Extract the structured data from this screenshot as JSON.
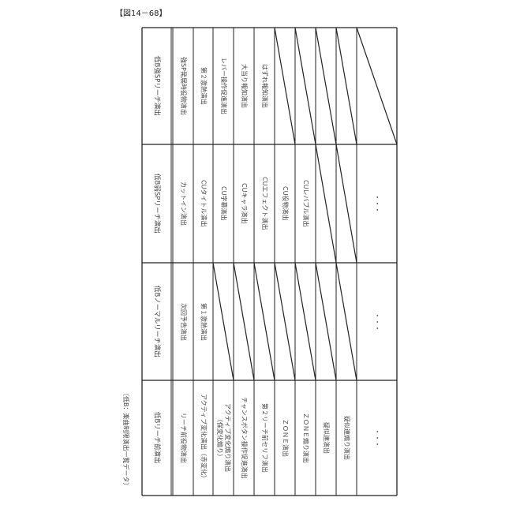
{
  "figure_label": "【図14－68】",
  "caption": "〔低B：楽曲制限演出一覧データ〕",
  "groups": [
    {
      "header": "低B強SPリーチ演出",
      "cells": [
        "強SP発展時役物演出",
        "第２激熱演出",
        "レバー操作促進演出",
        "大当り報知演出",
        "はずれ報知演出",
        null,
        null,
        null,
        null,
        null
      ]
    },
    {
      "header": "低B弱SPリーチ演出",
      "cells": [
        "カットイン演出",
        "CUタイトル演出",
        "CU字幕演出",
        "CUキャラ演出",
        "CUエフェクト演出",
        "CU役物演出",
        "CUレバブル演出",
        null,
        null,
        "・・・"
      ]
    },
    {
      "header": "低Bノーマルリーチ演出",
      "cells": [
        "次回予告演出",
        "第１激熱演出",
        null,
        null,
        null,
        null,
        null,
        null,
        null,
        "・・・"
      ]
    },
    {
      "header": "低Bリーチ前演出",
      "cells": [
        "リーチ前役物演出",
        "アクティブ変化演出（赤変化）",
        "アクティブ変化煽り演出\n（保変化煽り）",
        "チャンスボタン操作促進演出",
        "第２リーチ前セリフ演出",
        "ＺＯＮＥ演出",
        "ＺＯＮＥ煽り演出",
        "疑似連演出",
        "疑似連煽り演出",
        "・・・"
      ]
    }
  ]
}
